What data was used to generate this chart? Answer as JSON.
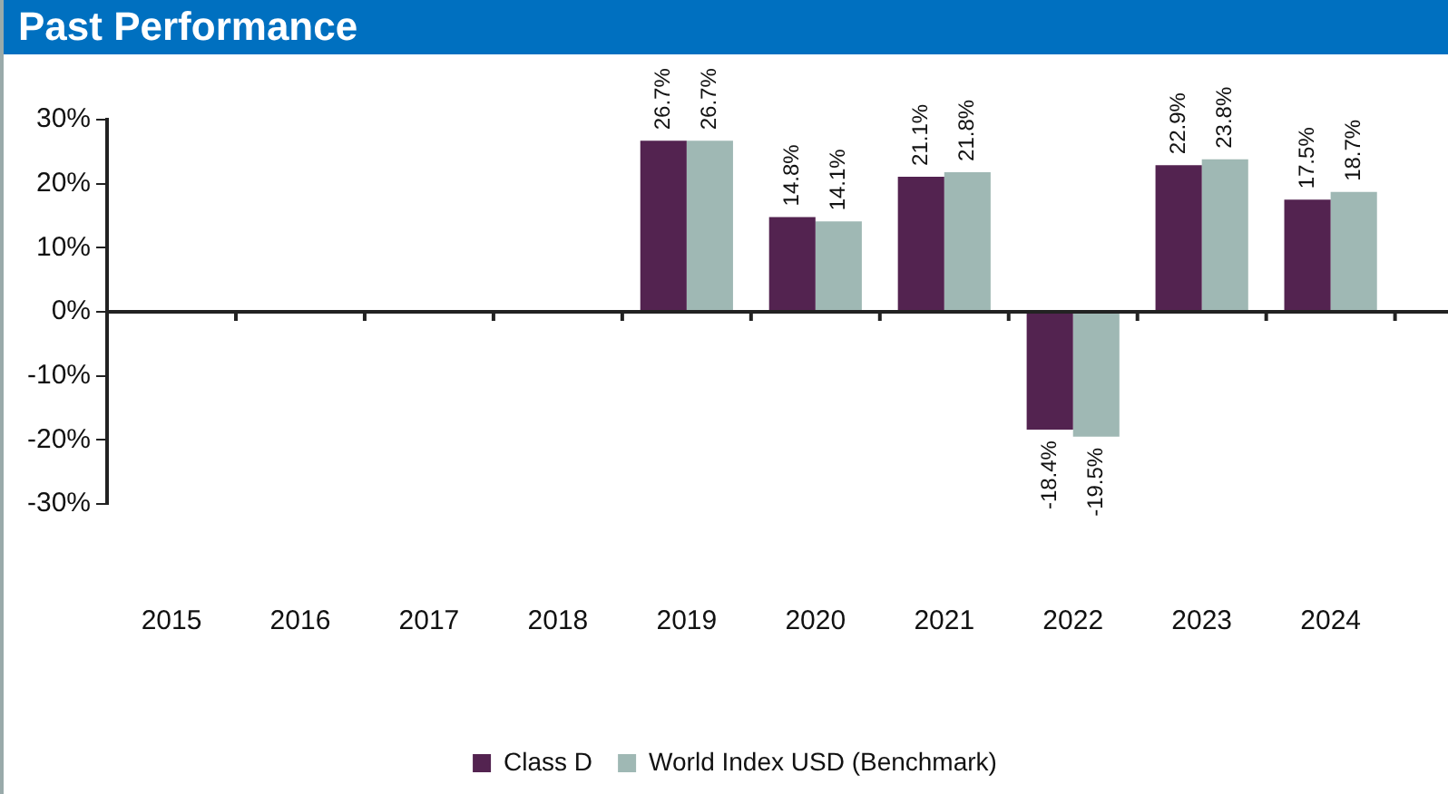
{
  "chart_data": {
    "type": "bar",
    "title": "Past Performance",
    "categories": [
      "2015",
      "2016",
      "2017",
      "2018",
      "2019",
      "2020",
      "2021",
      "2022",
      "2023",
      "2024"
    ],
    "series": [
      {
        "name": "Class D",
        "color": "#532350",
        "values": [
          null,
          null,
          null,
          null,
          26.7,
          14.8,
          21.1,
          -18.4,
          22.9,
          17.5
        ],
        "value_labels": [
          null,
          null,
          null,
          null,
          "26.7%",
          "14.8%",
          "21.1%",
          "-18.4%",
          "22.9%",
          "17.5%"
        ]
      },
      {
        "name": "World Index USD (Benchmark)",
        "color": "#9fb8b4",
        "values": [
          null,
          null,
          null,
          null,
          26.7,
          14.1,
          21.8,
          -19.5,
          23.8,
          18.7
        ],
        "value_labels": [
          null,
          null,
          null,
          null,
          "26.7%",
          "14.1%",
          "21.8%",
          "-19.5%",
          "23.8%",
          "18.7%"
        ]
      }
    ],
    "ylim": [
      -30,
      30
    ],
    "yticks": [
      {
        "value": -30,
        "label": "-30%"
      },
      {
        "value": -20,
        "label": "-20%"
      },
      {
        "value": -10,
        "label": "-10%"
      },
      {
        "value": 0,
        "label": "0%"
      },
      {
        "value": 10,
        "label": "10%"
      },
      {
        "value": 20,
        "label": "20%"
      },
      {
        "value": 30,
        "label": "30%"
      }
    ],
    "legend": "bottom"
  }
}
